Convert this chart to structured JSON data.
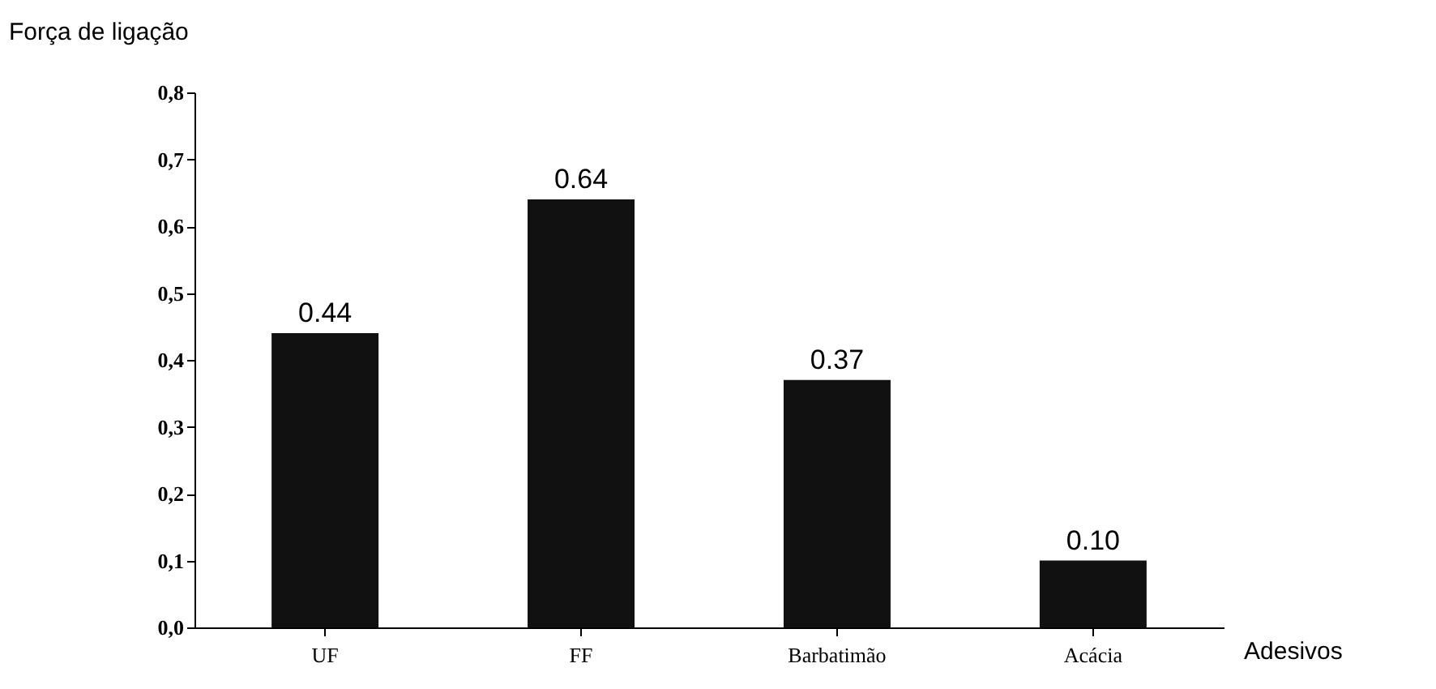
{
  "chart_data": {
    "type": "bar",
    "xlabel": "Adesivos",
    "ylabel": "Força de ligação",
    "categories": [
      "UF",
      "FF",
      "Barbatimão",
      "Acácia"
    ],
    "values": [
      0.44,
      0.64,
      0.37,
      0.1
    ],
    "value_labels": [
      "0.44",
      "0.64",
      "0.37",
      "0.10"
    ],
    "color": "#111111",
    "ylim": [
      0,
      0.8
    ],
    "yticks": [
      {
        "value": 0,
        "label": "0,0"
      },
      {
        "value": 0.1,
        "label": "0,1"
      },
      {
        "value": 0.2,
        "label": "0,2"
      },
      {
        "value": 0.3,
        "label": "0,3"
      },
      {
        "value": 0.4,
        "label": "0,4"
      },
      {
        "value": 0.5,
        "label": "0,5"
      },
      {
        "value": 0.6,
        "label": "0,6"
      },
      {
        "value": 0.7,
        "label": "0,7"
      },
      {
        "value": 0.8,
        "label": "0,8"
      }
    ],
    "grid": false
  }
}
